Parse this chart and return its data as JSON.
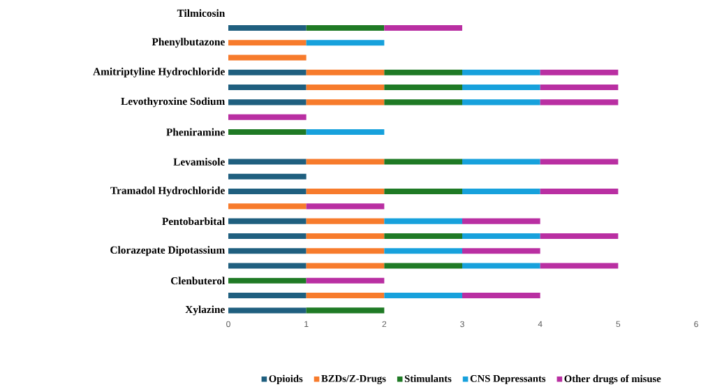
{
  "chart_data": {
    "type": "bar",
    "orientation": "horizontal",
    "stacked": true,
    "categories": [
      "Tilmicosin",
      null,
      "Phenylbutazone",
      null,
      "Amitriptyline Hydrochloride",
      null,
      "Levothyroxine Sodium",
      null,
      "Pheniramine",
      null,
      "Levamisole",
      null,
      "Tramadol Hydrochloride",
      null,
      "Pentobarbital",
      null,
      "Clorazepate Dipotassium",
      null,
      "Clenbuterol",
      null,
      "Xylazine"
    ],
    "series": [
      {
        "name": "Opioids",
        "color": "#1f5f7f",
        "values": [
          null,
          1,
          null,
          null,
          1,
          1,
          1,
          null,
          null,
          null,
          1,
          1,
          1,
          null,
          1,
          1,
          1,
          1,
          null,
          1,
          1
        ]
      },
      {
        "name": "BZDs/Z-Drugs",
        "color": "#f77b2c",
        "values": [
          null,
          null,
          1,
          1,
          1,
          1,
          1,
          null,
          null,
          null,
          1,
          null,
          1,
          1,
          1,
          1,
          1,
          1,
          null,
          1,
          null
        ]
      },
      {
        "name": "Stimulants",
        "color": "#1f7a25",
        "values": [
          null,
          1,
          null,
          null,
          1,
          1,
          1,
          null,
          1,
          null,
          1,
          null,
          1,
          null,
          null,
          1,
          null,
          1,
          1,
          null,
          1
        ]
      },
      {
        "name": "CNS Depressants",
        "color": "#17a1dc",
        "values": [
          null,
          null,
          1,
          null,
          1,
          1,
          1,
          null,
          1,
          null,
          1,
          null,
          1,
          null,
          1,
          1,
          1,
          1,
          null,
          1,
          null
        ]
      },
      {
        "name": "Other drugs of misuse",
        "color": "#b92fa2",
        "values": [
          null,
          1,
          null,
          null,
          1,
          1,
          1,
          1,
          null,
          null,
          1,
          null,
          1,
          1,
          1,
          1,
          1,
          1,
          1,
          1,
          null
        ]
      }
    ],
    "xlim": [
      0,
      6
    ],
    "xticks": [
      0,
      1,
      2,
      3,
      4,
      5,
      6
    ],
    "legend": "bottom"
  }
}
